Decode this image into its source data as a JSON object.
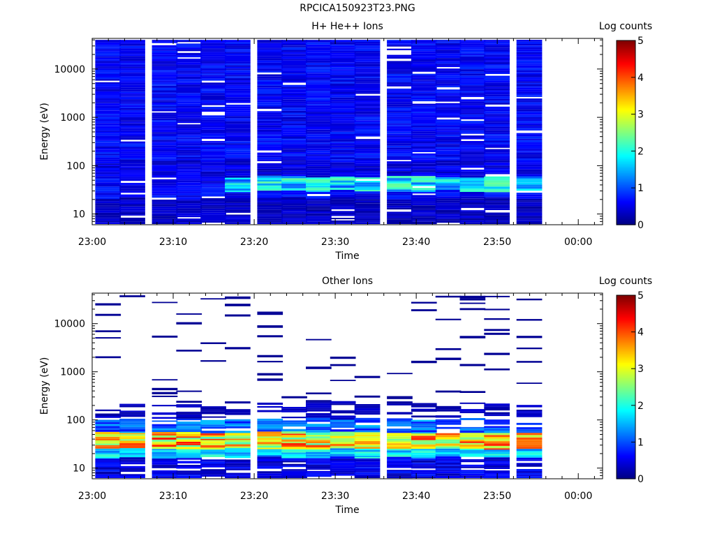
{
  "figure_title": "RPCICA150923T23.PNG",
  "colorbar": {
    "label": "Log counts",
    "ticks": [
      "0",
      "1",
      "2",
      "3",
      "4",
      "5"
    ],
    "colormap": "jet"
  },
  "chart_data": [
    {
      "type": "heatmap",
      "title": "H+ He++ Ions",
      "xlabel": "Time",
      "ylabel": "Energy (eV)",
      "x_ticks": [
        "23:00",
        "23:10",
        "23:20",
        "23:30",
        "23:40",
        "23:50",
        "00:00"
      ],
      "x_range": [
        "23:00",
        "00:03"
      ],
      "y_scale": "log",
      "y_ticks": [
        "10",
        "100",
        "1000",
        "10000"
      ],
      "ylim": [
        6,
        43000
      ],
      "zlim": [
        0,
        5
      ],
      "time_bins": [
        "23:02",
        "23:05",
        "23:09",
        "23:12",
        "23:15",
        "23:18",
        "23:22",
        "23:25",
        "23:28",
        "23:31",
        "23:34",
        "23:38",
        "23:41",
        "23:44",
        "23:47",
        "23:50",
        "23:54"
      ],
      "approx_levels": "mostly 0.3-1.0 above 100 eV; 1.5-2.5 near 30-50 eV late in the hour; gaps (white) scattered"
    },
    {
      "type": "heatmap",
      "title": "Other Ions",
      "xlabel": "Time",
      "ylabel": "Energy (eV)",
      "x_ticks": [
        "23:00",
        "23:10",
        "23:20",
        "23:30",
        "23:40",
        "23:50",
        "00:00"
      ],
      "x_range": [
        "23:00",
        "00:03"
      ],
      "y_scale": "log",
      "y_ticks": [
        "10",
        "100",
        "1000",
        "10000"
      ],
      "ylim": [
        6,
        43000
      ],
      "zlim": [
        0,
        5
      ],
      "time_bins": [
        "23:02",
        "23:05",
        "23:09",
        "23:12",
        "23:15",
        "23:18",
        "23:22",
        "23:25",
        "23:28",
        "23:31",
        "23:34",
        "23:38",
        "23:41",
        "23:44",
        "23:47",
        "23:50",
        "23:54"
      ],
      "approx_levels": "peak 3.0-4.5 between 25 and 50 eV; sparse near-zero lines above 150 eV"
    }
  ]
}
